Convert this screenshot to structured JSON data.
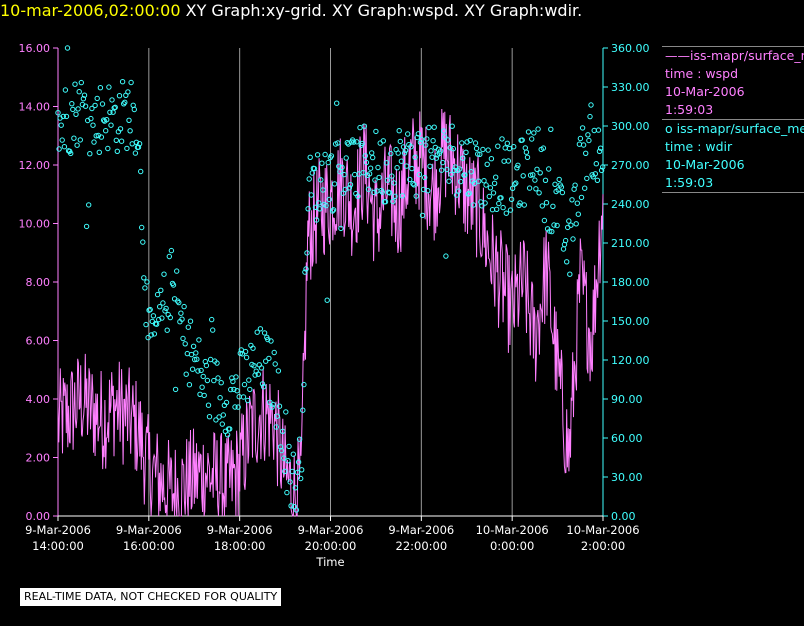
{
  "header": {
    "datetime": "10-mar-2006,02:00:00",
    "graphs": "XY Graph:xy-grid.  XY Graph:wspd.  XY Graph:wdir."
  },
  "legend": {
    "entries": [
      {
        "marker": "——",
        "name": "iss-mapr/surface_met",
        "axis": "time : wspd",
        "date": "10-Mar-2006",
        "time": "1:59:03",
        "color": "#ff80ff"
      },
      {
        "marker": "o",
        "name": "iss-mapr/surface_met",
        "axis": "time : wdir",
        "date": "10-Mar-2006",
        "time": "1:59:03",
        "color": "#40ffff"
      }
    ]
  },
  "footer": {
    "text": "REAL-TIME DATA, NOT CHECKED FOR QUALITY"
  },
  "chart_data": {
    "type": "line",
    "title": "",
    "xlabel": "Time",
    "x_ticks": [
      {
        "line1": "9-Mar-2006",
        "line2": "14:00:00",
        "hour": 14
      },
      {
        "line1": "9-Mar-2006",
        "line2": "16:00:00",
        "hour": 16
      },
      {
        "line1": "9-Mar-2006",
        "line2": "18:00:00",
        "hour": 18
      },
      {
        "line1": "9-Mar-2006",
        "line2": "20:00:00",
        "hour": 20
      },
      {
        "line1": "9-Mar-2006",
        "line2": "22:00:00",
        "hour": 22
      },
      {
        "line1": "10-Mar-2006",
        "line2": "0:00:00",
        "hour": 24
      },
      {
        "line1": "10-Mar-2006",
        "line2": "2:00:00",
        "hour": 26
      }
    ],
    "xlim_hours": [
      14,
      26
    ],
    "y_left": {
      "label": "wspd",
      "ylim": [
        0,
        16
      ],
      "ticks": [
        "0.00",
        "2.00",
        "4.00",
        "6.00",
        "8.00",
        "10.00",
        "12.00",
        "14.00",
        "16.00"
      ],
      "color": "#ff80ff"
    },
    "y_right": {
      "label": "wdir",
      "ylim": [
        0,
        360
      ],
      "ticks": [
        "0.00",
        "30.00",
        "60.00",
        "90.00",
        "120.00",
        "150.00",
        "180.00",
        "210.00",
        "240.00",
        "270.00",
        "300.00",
        "330.00",
        "360.00"
      ],
      "color": "#40ffff"
    },
    "grid": "vertical",
    "series": [
      {
        "name": "time : wspd",
        "style": "line",
        "color": "#ff80ff",
        "points": [
          [
            14.0,
            3.2
          ],
          [
            14.25,
            3.5
          ],
          [
            14.5,
            4.0
          ],
          [
            14.75,
            3.6
          ],
          [
            15.0,
            3.3
          ],
          [
            15.25,
            3.8
          ],
          [
            15.5,
            3.4
          ],
          [
            15.75,
            3.0
          ],
          [
            16.0,
            1.6
          ],
          [
            16.25,
            1.2
          ],
          [
            16.5,
            0.8
          ],
          [
            16.75,
            1.0
          ],
          [
            17.0,
            1.3
          ],
          [
            17.25,
            1.5
          ],
          [
            17.5,
            1.2
          ],
          [
            17.75,
            1.0
          ],
          [
            18.0,
            1.6
          ],
          [
            18.25,
            3.0
          ],
          [
            18.5,
            3.6
          ],
          [
            18.75,
            3.3
          ],
          [
            19.0,
            1.4
          ],
          [
            19.2,
            0.8
          ],
          [
            19.35,
            1.0
          ],
          [
            19.5,
            9.5
          ],
          [
            19.75,
            10.5
          ],
          [
            20.0,
            10.8
          ],
          [
            20.25,
            11.5
          ],
          [
            20.5,
            10.5
          ],
          [
            20.75,
            12.0
          ],
          [
            21.0,
            10.0
          ],
          [
            21.25,
            11.2
          ],
          [
            21.5,
            10.5
          ],
          [
            21.75,
            12.0
          ],
          [
            22.0,
            12.2
          ],
          [
            22.25,
            11.0
          ],
          [
            22.5,
            12.5
          ],
          [
            22.75,
            12.0
          ],
          [
            23.0,
            11.0
          ],
          [
            23.25,
            10.5
          ],
          [
            23.5,
            9.0
          ],
          [
            23.75,
            8.0
          ],
          [
            24.0,
            7.0
          ],
          [
            24.25,
            8.0
          ],
          [
            24.5,
            6.0
          ],
          [
            24.75,
            8.5
          ],
          [
            25.0,
            5.0
          ],
          [
            25.25,
            2.0
          ],
          [
            25.5,
            8.0
          ],
          [
            25.75,
            6.0
          ],
          [
            26.0,
            11.0
          ]
        ],
        "noise": 1.8,
        "step_minutes": 1
      },
      {
        "name": "time : wdir",
        "style": "markers",
        "color": "#40ffff",
        "points": [
          [
            14.0,
            300
          ],
          [
            14.25,
            305
          ],
          [
            14.5,
            315
          ],
          [
            14.75,
            300
          ],
          [
            15.0,
            310
          ],
          [
            15.25,
            305
          ],
          [
            15.5,
            310
          ],
          [
            15.75,
            305
          ],
          [
            16.0,
            130
          ],
          [
            16.25,
            150
          ],
          [
            16.5,
            180
          ],
          [
            16.75,
            140
          ],
          [
            17.0,
            120
          ],
          [
            17.25,
            100
          ],
          [
            17.5,
            95
          ],
          [
            17.75,
            90
          ],
          [
            18.0,
            100
          ],
          [
            18.25,
            110
          ],
          [
            18.5,
            120
          ],
          [
            18.75,
            105
          ],
          [
            19.0,
            60
          ],
          [
            19.2,
            20
          ],
          [
            19.35,
            40
          ],
          [
            19.5,
            250
          ],
          [
            19.75,
            255
          ],
          [
            20.0,
            260
          ],
          [
            20.25,
            270
          ],
          [
            20.5,
            265
          ],
          [
            20.75,
            275
          ],
          [
            21.0,
            270
          ],
          [
            21.25,
            265
          ],
          [
            21.5,
            275
          ],
          [
            21.75,
            270
          ],
          [
            22.0,
            275
          ],
          [
            22.25,
            270
          ],
          [
            22.5,
            280
          ],
          [
            22.75,
            275
          ],
          [
            23.0,
            270
          ],
          [
            23.25,
            265
          ],
          [
            23.5,
            260
          ],
          [
            23.75,
            265
          ],
          [
            24.0,
            255
          ],
          [
            24.25,
            265
          ],
          [
            24.5,
            280
          ],
          [
            24.75,
            250
          ],
          [
            25.0,
            240
          ],
          [
            25.25,
            200
          ],
          [
            25.5,
            270
          ],
          [
            25.75,
            290
          ],
          [
            26.0,
            265
          ]
        ],
        "noise": 28,
        "step_minutes": 1.4
      }
    ]
  }
}
